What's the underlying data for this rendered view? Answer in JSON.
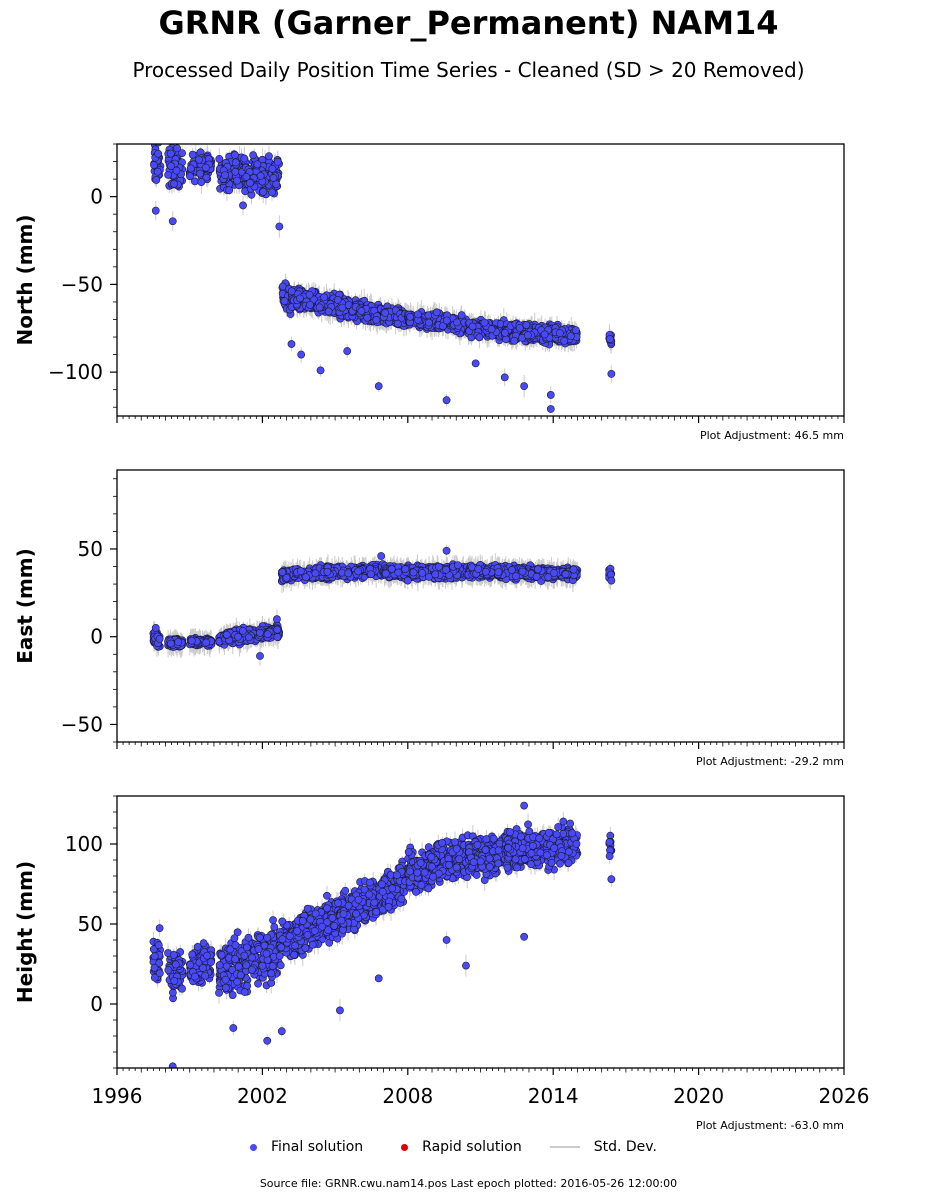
{
  "title": "GRNR (Garner_Permanent) NAM14",
  "subtitle": "Processed Daily Position Time Series - Cleaned (SD > 20 Removed)",
  "legend": {
    "final": "Final solution",
    "rapid": "Rapid solution",
    "std": "Std. Dev."
  },
  "colors": {
    "final": "#4a4af4",
    "rapid": "#dd0000",
    "std": "#cccccc"
  },
  "footer": "Source file: GRNR.cwu.nam14.pos  Last epoch plotted: 2016-05-26 12:00:00",
  "chart_data": [
    {
      "type": "scatter",
      "ylabel": "North (mm)",
      "adjustment": "Plot Adjustment: 46.5 mm",
      "xlim": [
        1996,
        2026
      ],
      "ylim": [
        -125,
        30
      ],
      "xticks": [
        1996,
        2002,
        2008,
        2014,
        2020,
        2026
      ],
      "yticks": [
        0,
        -50,
        -100
      ],
      "segments": [
        {
          "x": [
            1997.5,
            1997.8
          ],
          "y": [
            18,
            18
          ],
          "spread": 10
        },
        {
          "x": [
            1998.1,
            1998.7
          ],
          "y": [
            18,
            16
          ],
          "spread": 9
        },
        {
          "x": [
            1999.0,
            1999.9
          ],
          "y": [
            17,
            17
          ],
          "spread": 6
        },
        {
          "x": [
            2000.2,
            2002.7
          ],
          "y": [
            14,
            12
          ],
          "spread": 8
        },
        {
          "x": [
            2002.8,
            2003.2
          ],
          "y": [
            -55,
            -60
          ],
          "spread": 6
        },
        {
          "x": [
            2003.2,
            2007.0
          ],
          "y": [
            -58,
            -68
          ],
          "spread": 5
        },
        {
          "x": [
            2007.0,
            2008.0
          ],
          "y": [
            -67,
            -70
          ],
          "spread": 4
        },
        {
          "x": [
            2008.0,
            2010.5
          ],
          "y": [
            -70,
            -73
          ],
          "spread": 4
        },
        {
          "x": [
            2010.5,
            2012.0
          ],
          "y": [
            -75,
            -76
          ],
          "spread": 4
        },
        {
          "x": [
            2012.0,
            2015.0
          ],
          "y": [
            -77,
            -79
          ],
          "spread": 4
        },
        {
          "x": [
            2016.3,
            2016.4
          ],
          "y": [
            -80,
            -82
          ],
          "spread": 3
        }
      ],
      "outliers": [
        {
          "x": 1997.6,
          "y": -8
        },
        {
          "x": 1998.3,
          "y": -14
        },
        {
          "x": 2001.2,
          "y": -5
        },
        {
          "x": 2002.7,
          "y": -17
        },
        {
          "x": 2003.2,
          "y": -84
        },
        {
          "x": 2003.6,
          "y": -90
        },
        {
          "x": 2004.4,
          "y": -99
        },
        {
          "x": 2005.5,
          "y": -88
        },
        {
          "x": 2006.8,
          "y": -108
        },
        {
          "x": 2009.6,
          "y": -116
        },
        {
          "x": 2012.0,
          "y": -103
        },
        {
          "x": 2012.8,
          "y": -108
        },
        {
          "x": 2013.9,
          "y": -121
        },
        {
          "x": 2013.9,
          "y": -113
        },
        {
          "x": 2016.4,
          "y": -101
        },
        {
          "x": 2010.8,
          "y": -95
        }
      ]
    },
    {
      "type": "scatter",
      "ylabel": "East (mm)",
      "adjustment": "Plot Adjustment: -29.2 mm",
      "xlim": [
        1996,
        2026
      ],
      "ylim": [
        -60,
        95
      ],
      "xticks": [
        1996,
        2002,
        2008,
        2014,
        2020,
        2026
      ],
      "yticks": [
        50,
        0,
        -50
      ],
      "segments": [
        {
          "x": [
            1997.5,
            1997.8
          ],
          "y": [
            -1,
            -2
          ],
          "spread": 3
        },
        {
          "x": [
            1998.1,
            1998.7
          ],
          "y": [
            -3,
            -4
          ],
          "spread": 2
        },
        {
          "x": [
            1999.0,
            1999.9
          ],
          "y": [
            -3,
            -3
          ],
          "spread": 2
        },
        {
          "x": [
            2000.2,
            2002.7
          ],
          "y": [
            -1,
            3
          ],
          "spread": 3
        },
        {
          "x": [
            2002.8,
            2007.0
          ],
          "y": [
            35,
            38
          ],
          "spread": 3
        },
        {
          "x": [
            2007.0,
            2010.5
          ],
          "y": [
            37,
            37
          ],
          "spread": 3
        },
        {
          "x": [
            2010.5,
            2015.0
          ],
          "y": [
            37,
            36
          ],
          "spread": 3
        },
        {
          "x": [
            2016.3,
            2016.4
          ],
          "y": [
            36,
            36
          ],
          "spread": 2
        }
      ],
      "outliers": [
        {
          "x": 1997.6,
          "y": 5
        },
        {
          "x": 2001.9,
          "y": -11
        },
        {
          "x": 2002.6,
          "y": 10
        },
        {
          "x": 2006.9,
          "y": 46
        },
        {
          "x": 2009.6,
          "y": 49
        },
        {
          "x": 2008.0,
          "y": 32
        },
        {
          "x": 2016.4,
          "y": 32
        }
      ]
    },
    {
      "type": "scatter",
      "ylabel": "Height (mm)",
      "adjustment": "Plot Adjustment: -63.0 mm",
      "xlim": [
        1996,
        2026
      ],
      "ylim": [
        -40,
        130
      ],
      "xticks": [
        1996,
        2002,
        2008,
        2014,
        2020,
        2026
      ],
      "yticks": [
        100,
        50,
        0
      ],
      "segments": [
        {
          "x": [
            1997.5,
            1997.8
          ],
          "y": [
            27,
            27
          ],
          "spread": 13
        },
        {
          "x": [
            1998.1,
            1998.7
          ],
          "y": [
            20,
            22
          ],
          "spread": 12
        },
        {
          "x": [
            1999.0,
            1999.9
          ],
          "y": [
            24,
            26
          ],
          "spread": 9
        },
        {
          "x": [
            2000.2,
            2002.7
          ],
          "y": [
            18,
            35
          ],
          "spread": 14
        },
        {
          "x": [
            2002.7,
            2007.9
          ],
          "y": [
            38,
            75
          ],
          "spread": 11
        },
        {
          "x": [
            2008.0,
            2010.5
          ],
          "y": [
            82,
            92
          ],
          "spread": 10
        },
        {
          "x": [
            2010.5,
            2012.0
          ],
          "y": [
            92,
            94
          ],
          "spread": 10
        },
        {
          "x": [
            2012.0,
            2015.0
          ],
          "y": [
            96,
            100
          ],
          "spread": 10
        },
        {
          "x": [
            2016.3,
            2016.4
          ],
          "y": [
            100,
            100
          ],
          "spread": 6
        }
      ],
      "outliers": [
        {
          "x": 1998.3,
          "y": -39
        },
        {
          "x": 2000.8,
          "y": -15
        },
        {
          "x": 2002.2,
          "y": -23
        },
        {
          "x": 2002.8,
          "y": -17
        },
        {
          "x": 2005.2,
          "y": -4
        },
        {
          "x": 2010.4,
          "y": 24
        },
        {
          "x": 2009.6,
          "y": 40
        },
        {
          "x": 2012.8,
          "y": 42
        },
        {
          "x": 2016.4,
          "y": 78
        },
        {
          "x": 2012.8,
          "y": 124
        },
        {
          "x": 2006.8,
          "y": 16
        }
      ]
    }
  ]
}
